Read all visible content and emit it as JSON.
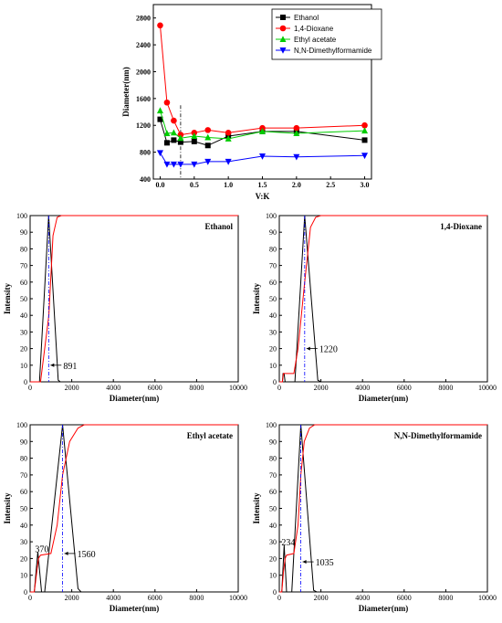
{
  "chart_data": [
    {
      "type": "line",
      "title": "",
      "xlabel": "V:K",
      "ylabel": "Diameter(nm)",
      "xlim": [
        -0.1,
        3.1
      ],
      "ylim": [
        400,
        3000
      ],
      "xticks": [
        "0.0",
        "0.5",
        "1.0",
        "1.5",
        "2.0",
        "2.5",
        "3.0"
      ],
      "yticks": [
        "400",
        "800",
        "1200",
        "1600",
        "2000",
        "2400",
        "2800"
      ],
      "xtick_values": [
        0,
        0.5,
        1.0,
        1.5,
        2.0,
        2.5,
        3.0
      ],
      "ytick_values": [
        400,
        800,
        1200,
        1600,
        2000,
        2400,
        2800
      ],
      "legend": "top-right",
      "vline_x": 0.3,
      "vline_range": [
        400,
        1500
      ],
      "series": [
        {
          "name": "Ethanol",
          "color": "#000000",
          "marker": "square",
          "x": [
            0,
            0.1,
            0.2,
            0.3,
            0.5,
            0.7,
            1.0,
            1.5,
            2.0,
            3.0
          ],
          "y": [
            1290,
            940,
            980,
            950,
            960,
            900,
            1040,
            1110,
            1110,
            980
          ]
        },
        {
          "name": "1,4-Dioxane",
          "color": "#ff0000",
          "marker": "circle",
          "x": [
            0,
            0.1,
            0.2,
            0.3,
            0.5,
            0.7,
            1.0,
            1.5,
            2.0,
            3.0
          ],
          "y": [
            2690,
            1540,
            1270,
            1060,
            1090,
            1130,
            1090,
            1160,
            1160,
            1200
          ]
        },
        {
          "name": "Ethyl acetate",
          "color": "#00cc00",
          "marker": "triangle-up",
          "x": [
            0,
            0.1,
            0.2,
            0.3,
            0.5,
            0.7,
            1.0,
            1.5,
            2.0,
            3.0
          ],
          "y": [
            1420,
            1080,
            1090,
            1010,
            1040,
            1020,
            1000,
            1110,
            1080,
            1120
          ]
        },
        {
          "name": "N,N-Dimethylformamide",
          "color": "#0000ff",
          "marker": "triangle-down",
          "x": [
            0,
            0.1,
            0.2,
            0.3,
            0.5,
            0.7,
            1.0,
            1.5,
            2.0,
            3.0
          ],
          "y": [
            790,
            620,
            620,
            620,
            620,
            660,
            660,
            740,
            730,
            750
          ]
        }
      ]
    },
    {
      "type": "line",
      "title": "Ethanol",
      "xlabel": "Diameter(nm)",
      "ylabel": "Intensity",
      "xlim": [
        0,
        10000
      ],
      "ylim": [
        0,
        100
      ],
      "xticks": [
        "0",
        "2000",
        "4000",
        "6000",
        "8000",
        "10000"
      ],
      "yticks": [
        "0",
        "10",
        "20",
        "30",
        "40",
        "50",
        "60",
        "70",
        "80",
        "90",
        "100"
      ],
      "annotation": "891",
      "peak": 891,
      "series": [
        {
          "color": "#000000",
          "x": [
            0,
            450,
            891,
            1350,
            1450,
            10000
          ],
          "y": [
            0,
            0,
            100,
            1,
            0,
            0
          ]
        },
        {
          "color": "#ff0000",
          "x": [
            0,
            500,
            900,
            1100,
            1300,
            1500,
            10000
          ],
          "y": [
            0,
            0,
            40,
            88,
            99,
            100,
            100
          ]
        }
      ]
    },
    {
      "type": "line",
      "title": "1,4-Dioxane",
      "xlabel": "Diameter(nm)",
      "ylabel": "Intensity",
      "xlim": [
        0,
        10000
      ],
      "ylim": [
        0,
        100
      ],
      "xticks": [
        "0",
        "2000",
        "4000",
        "6000",
        "8000",
        "10000"
      ],
      "yticks": [
        "0",
        "10",
        "20",
        "30",
        "40",
        "50",
        "60",
        "70",
        "80",
        "90",
        "100"
      ],
      "annotation": "1220",
      "peak": 1220,
      "series": [
        {
          "color": "#000000",
          "x": [
            0,
            150,
            180,
            230,
            280,
            750,
            1220,
            1850,
            2000,
            10000
          ],
          "y": [
            0,
            0,
            5,
            5,
            0,
            0,
            100,
            1,
            0,
            0
          ]
        },
        {
          "color": "#ff0000",
          "x": [
            0,
            150,
            200,
            700,
            900,
            1220,
            1500,
            1750,
            2000,
            10000
          ],
          "y": [
            0,
            0,
            5,
            5,
            20,
            60,
            93,
            99,
            100,
            100
          ]
        }
      ]
    },
    {
      "type": "line",
      "title": "Ethyl acetate",
      "xlabel": "Diameter(nm)",
      "ylabel": "Intensity",
      "xlim": [
        0,
        10000
      ],
      "ylim": [
        0,
        100
      ],
      "xticks": [
        "0",
        "2000",
        "4000",
        "6000",
        "8000",
        "10000"
      ],
      "yticks": [
        "0",
        "10",
        "20",
        "30",
        "40",
        "50",
        "60",
        "70",
        "80",
        "90",
        "100"
      ],
      "annotations": [
        "370",
        "1560"
      ],
      "peaks": [
        370,
        1560
      ],
      "series": [
        {
          "color": "#000000",
          "x": [
            0,
            200,
            370,
            550,
            700,
            1560,
            2300,
            2450,
            10000
          ],
          "y": [
            0,
            0,
            24,
            0,
            0,
            100,
            2,
            0,
            0
          ]
        },
        {
          "color": "#ff0000",
          "x": [
            0,
            200,
            300,
            400,
            500,
            1000,
            1300,
            1560,
            1900,
            2300,
            2600,
            10000
          ],
          "y": [
            0,
            0,
            10,
            20,
            22,
            23,
            40,
            70,
            90,
            98,
            100,
            100
          ]
        }
      ]
    },
    {
      "type": "line",
      "title": "N,N-Dimethylformamide",
      "xlabel": "Diameter(nm)",
      "ylabel": "Intensity",
      "xlim": [
        0,
        10000
      ],
      "ylim": [
        0,
        100
      ],
      "xticks": [
        "0",
        "2000",
        "4000",
        "6000",
        "8000",
        "10000"
      ],
      "yticks": [
        "0",
        "10",
        "20",
        "30",
        "40",
        "50",
        "60",
        "70",
        "80",
        "90",
        "100"
      ],
      "annotations": [
        "234",
        "1035"
      ],
      "peaks": [
        234,
        1035
      ],
      "series": [
        {
          "color": "#000000",
          "x": [
            0,
            120,
            234,
            350,
            600,
            1035,
            1650,
            1800,
            10000
          ],
          "y": [
            0,
            0,
            28,
            0,
            0,
            100,
            1,
            0,
            0
          ]
        },
        {
          "color": "#ff0000",
          "x": [
            0,
            120,
            200,
            280,
            350,
            700,
            900,
            1035,
            1200,
            1450,
            1700,
            10000
          ],
          "y": [
            0,
            0,
            12,
            20,
            22,
            23,
            40,
            70,
            90,
            98,
            100,
            100
          ]
        }
      ]
    }
  ]
}
